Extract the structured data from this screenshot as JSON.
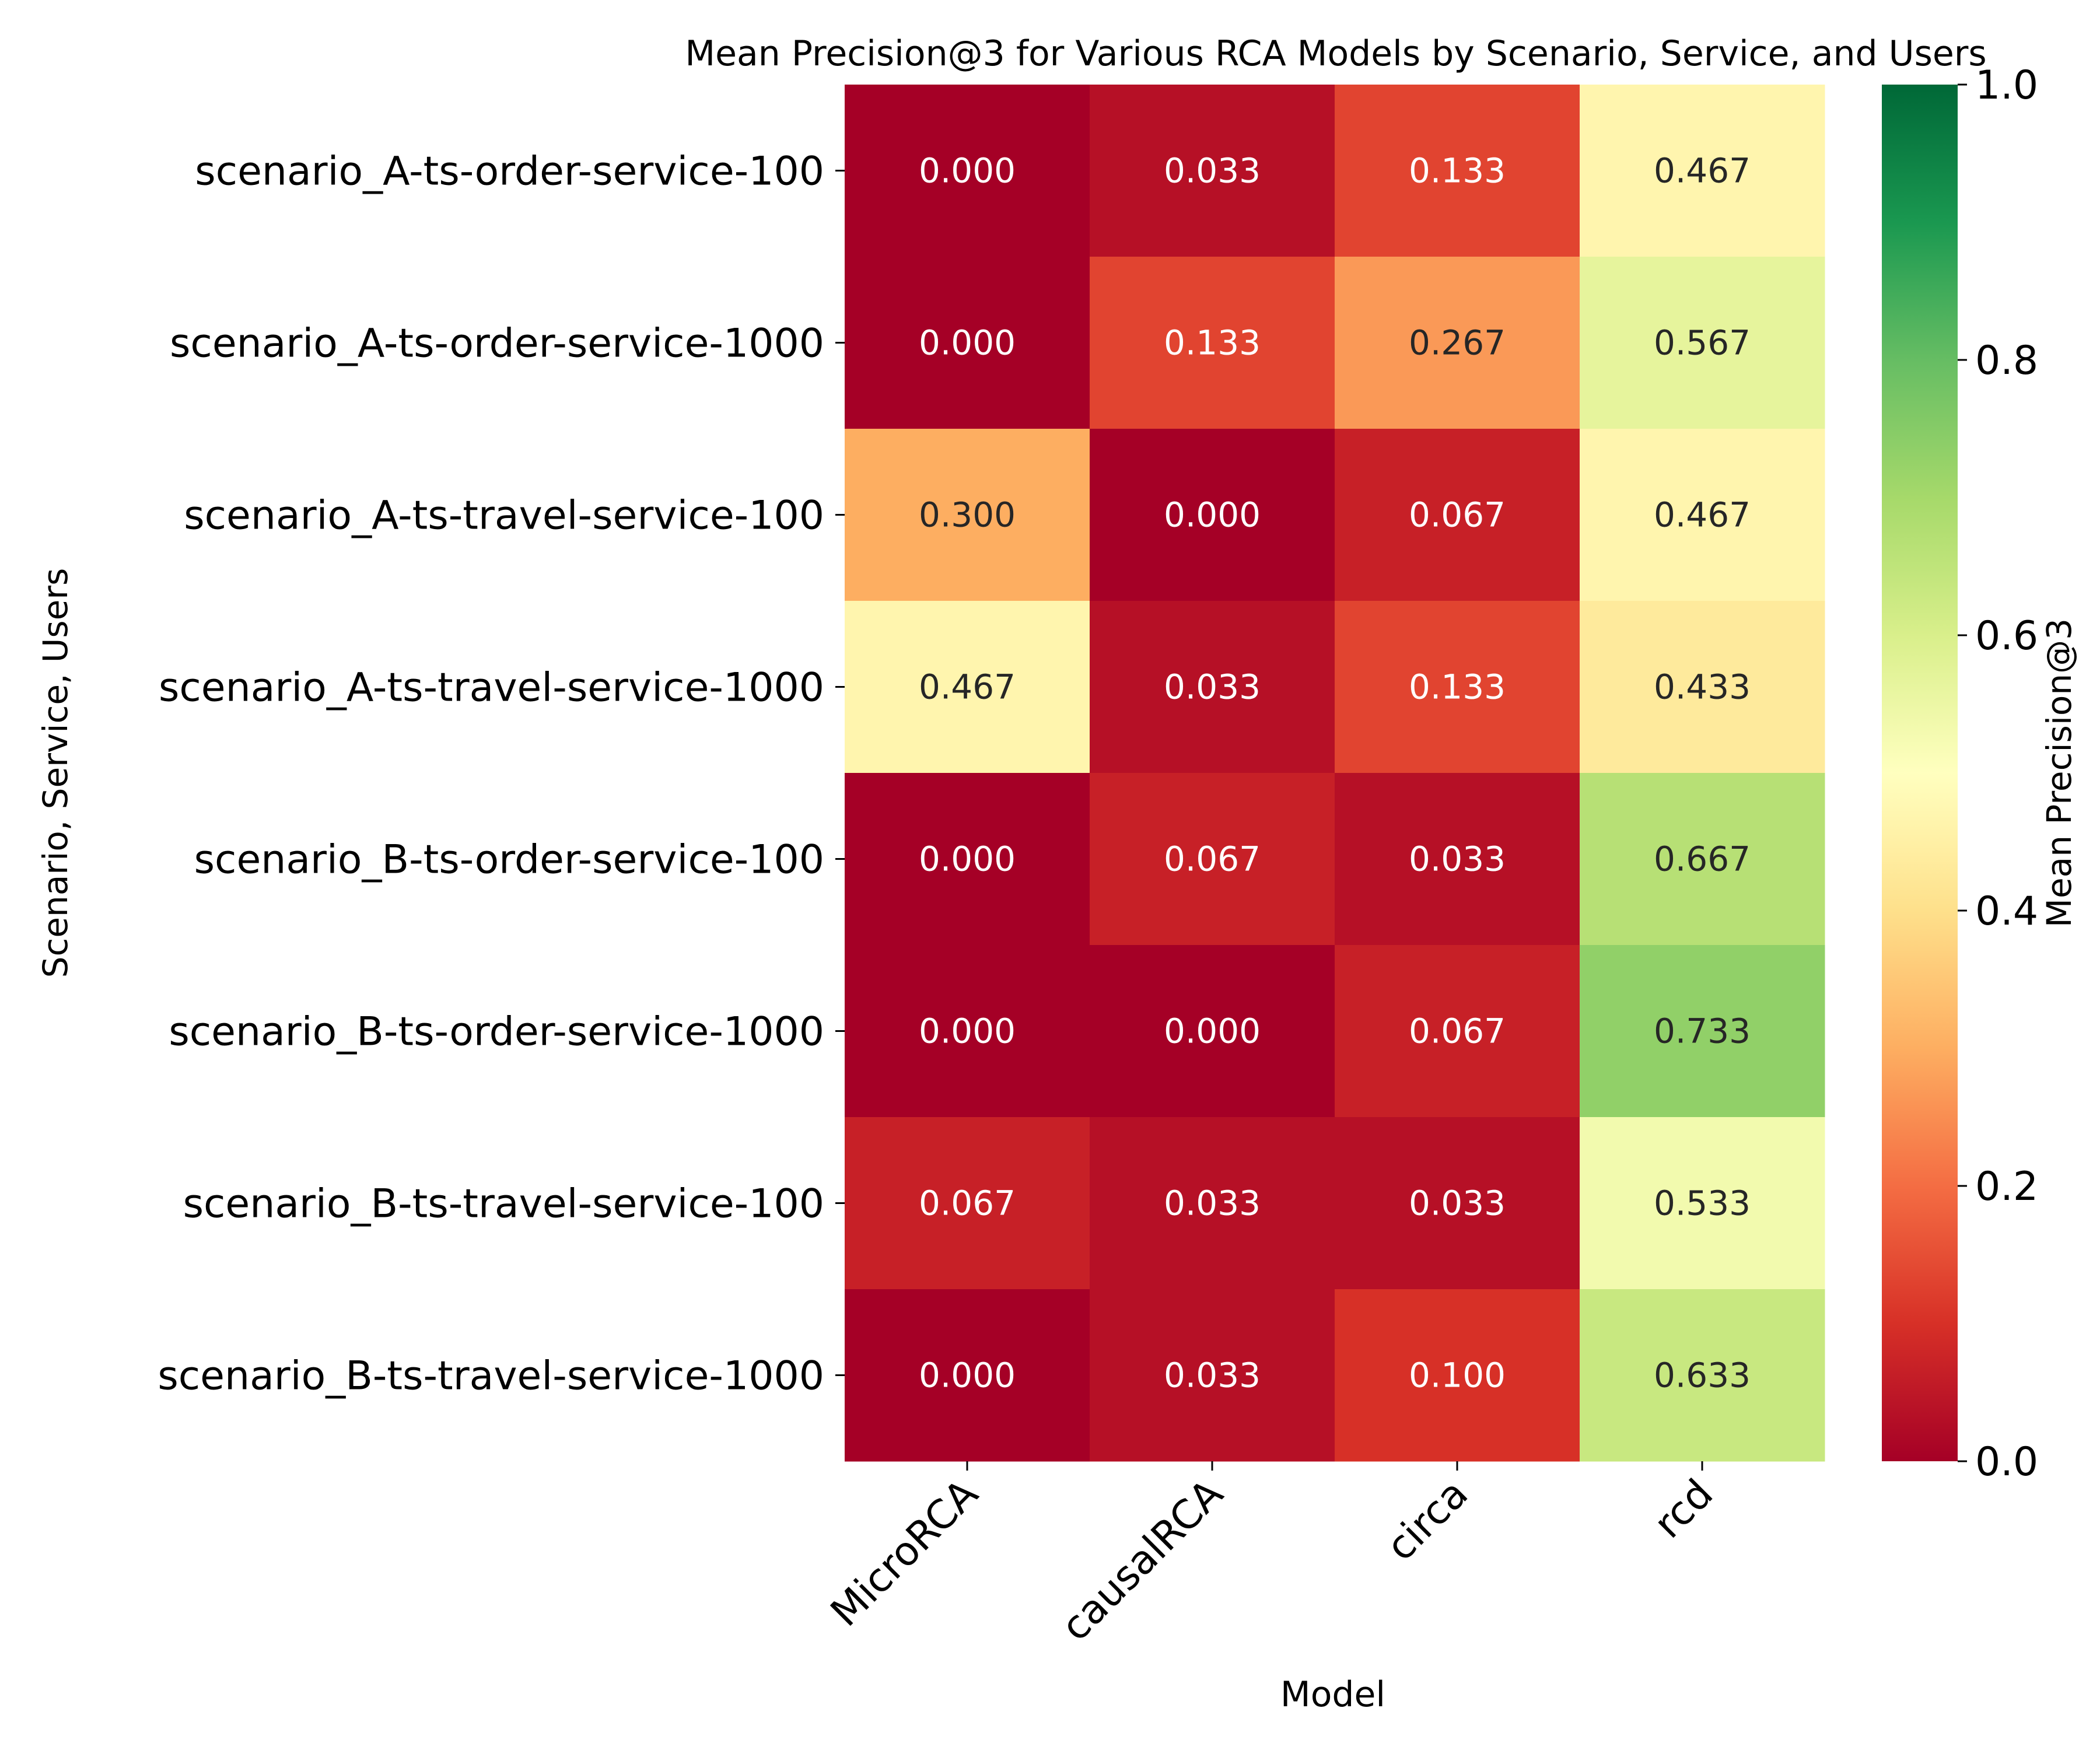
{
  "chart_data": {
    "type": "heatmap",
    "title": "Mean Precision@3 for Various RCA Models by Scenario, Service, and Users",
    "xlabel": "Model",
    "ylabel": "Scenario, Service, Users",
    "colorbar_label": "Mean Precision@3",
    "colormap": "RdYlGn",
    "vmin": 0.0,
    "vmax": 1.0,
    "colorbar_ticks": [
      "0.0",
      "0.2",
      "0.4",
      "0.6",
      "0.8",
      "1.0"
    ],
    "x_categories": [
      "MicroRCA",
      "causalRCA",
      "circa",
      "rcd"
    ],
    "y_categories": [
      "scenario_A-ts-order-service-100",
      "scenario_A-ts-order-service-1000",
      "scenario_A-ts-travel-service-100",
      "scenario_A-ts-travel-service-1000",
      "scenario_B-ts-order-service-100",
      "scenario_B-ts-order-service-1000",
      "scenario_B-ts-travel-service-100",
      "scenario_B-ts-travel-service-1000"
    ],
    "values": [
      [
        0.0,
        0.033,
        0.133,
        0.467
      ],
      [
        0.0,
        0.133,
        0.267,
        0.567
      ],
      [
        0.3,
        0.0,
        0.067,
        0.467
      ],
      [
        0.467,
        0.033,
        0.133,
        0.433
      ],
      [
        0.0,
        0.067,
        0.033,
        0.667
      ],
      [
        0.0,
        0.0,
        0.067,
        0.733
      ],
      [
        0.067,
        0.033,
        0.033,
        0.533
      ],
      [
        0.0,
        0.033,
        0.1,
        0.633
      ]
    ]
  }
}
